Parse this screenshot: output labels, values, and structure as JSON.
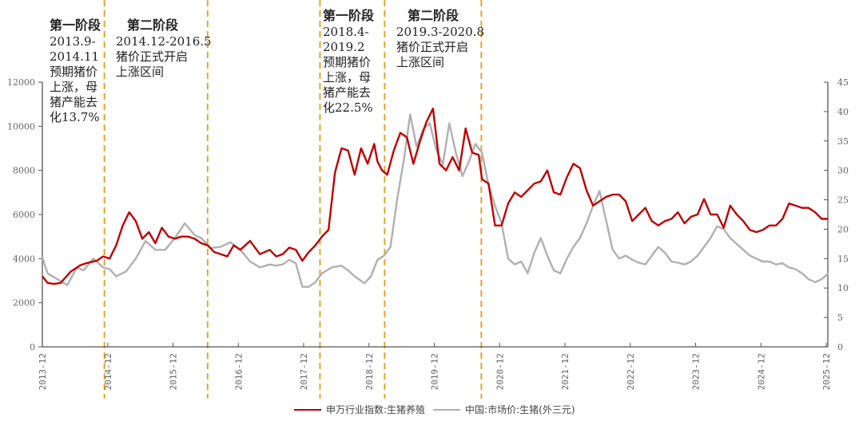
{
  "chart_data": {
    "type": "line",
    "title": "",
    "x_ticks": [
      "2013-12",
      "2014-12",
      "2015-12",
      "2016-12",
      "2017-12",
      "2018-12",
      "2019-12",
      "2020-12",
      "2021-12",
      "2022-12",
      "2023-12",
      "2024-12",
      "2025-12"
    ],
    "y_left": {
      "label": "",
      "ylim": [
        0,
        12000
      ],
      "ticks": [
        0,
        2000,
        4000,
        6000,
        8000,
        10000,
        12000
      ]
    },
    "y_right": {
      "label": "",
      "ylim": [
        0,
        45
      ],
      "ticks": [
        0,
        5,
        10,
        15,
        20,
        25,
        30,
        35,
        40,
        45
      ]
    },
    "grid": false,
    "legend_position": "bottom",
    "series": [
      {
        "name": "申万行业指数:生猪养殖",
        "axis": "left",
        "color": "#c00000",
        "x": [
          2013.92,
          2014.0,
          2014.1,
          2014.2,
          2014.35,
          2014.5,
          2014.6,
          2014.75,
          2014.85,
          2014.95,
          2015.05,
          2015.15,
          2015.25,
          2015.35,
          2015.45,
          2015.55,
          2015.65,
          2015.75,
          2015.85,
          2015.95,
          2016.05,
          2016.15,
          2016.25,
          2016.35,
          2016.45,
          2016.55,
          2016.65,
          2016.75,
          2016.85,
          2016.95,
          2017.1,
          2017.25,
          2017.4,
          2017.5,
          2017.6,
          2017.7,
          2017.8,
          2017.9,
          2018.0,
          2018.1,
          2018.2,
          2018.3,
          2018.4,
          2018.5,
          2018.6,
          2018.7,
          2018.8,
          2018.9,
          2019.0,
          2019.05,
          2019.12,
          2019.2,
          2019.3,
          2019.4,
          2019.5,
          2019.6,
          2019.7,
          2019.8,
          2019.9,
          2020.0,
          2020.1,
          2020.2,
          2020.3,
          2020.4,
          2020.5,
          2020.6,
          2020.65,
          2020.75,
          2020.85,
          2020.95,
          2021.05,
          2021.15,
          2021.25,
          2021.35,
          2021.45,
          2021.55,
          2021.65,
          2021.75,
          2021.85,
          2021.95,
          2022.05,
          2022.15,
          2022.25,
          2022.35,
          2022.45,
          2022.55,
          2022.65,
          2022.75,
          2022.85,
          2022.95,
          2023.05,
          2023.15,
          2023.25,
          2023.35,
          2023.45,
          2023.55,
          2023.65,
          2023.75,
          2023.85,
          2023.95,
          2024.05,
          2024.15,
          2024.25,
          2024.35,
          2024.45,
          2024.55,
          2024.65,
          2024.75,
          2024.85,
          2024.95,
          2025.05,
          2025.15,
          2025.25,
          2025.35,
          2025.45,
          2025.55,
          2025.65,
          2025.75,
          2025.85,
          2025.95
        ],
        "values": [
          3200,
          2900,
          2850,
          2900,
          3400,
          3700,
          3800,
          3900,
          4100,
          4000,
          4600,
          5500,
          6100,
          5700,
          4900,
          5200,
          4700,
          5400,
          5000,
          4900,
          5000,
          5000,
          4900,
          4700,
          4600,
          4300,
          4200,
          4100,
          4600,
          4400,
          4800,
          4200,
          4400,
          4100,
          4200,
          4500,
          4400,
          3900,
          4300,
          4600,
          5000,
          5300,
          7900,
          9000,
          8900,
          7800,
          9000,
          8300,
          9200,
          8400,
          8000,
          7800,
          8900,
          9700,
          9500,
          8300,
          9300,
          10200,
          10800,
          8300,
          8000,
          8600,
          8000,
          9900,
          8800,
          8700,
          7600,
          7400,
          5500,
          5500,
          6500,
          7000,
          6800,
          7100,
          7400,
          7500,
          8000,
          7000,
          6900,
          7700,
          8300,
          8100,
          7100,
          6400,
          6600,
          6800,
          6900,
          6900,
          6600,
          5700,
          6000,
          6300,
          5700,
          5500,
          5700,
          5800,
          6100,
          5600,
          5900,
          6000,
          6700,
          6000,
          6000,
          5400,
          6400,
          6000,
          5700,
          5300,
          5200,
          5300,
          5500,
          5500,
          5800,
          6500,
          6400,
          6300,
          6300,
          6100,
          5800,
          5800
        ],
        "note": "approximate trace"
      },
      {
        "name": "中国:市场价:生猪(外三元)",
        "axis": "right",
        "color": "#b0b0b0",
        "x": [
          2013.92,
          2014.0,
          2014.15,
          2014.3,
          2014.45,
          2014.55,
          2014.7,
          2014.85,
          2014.95,
          2015.05,
          2015.2,
          2015.35,
          2015.5,
          2015.65,
          2015.8,
          2015.95,
          2016.1,
          2016.25,
          2016.35,
          2016.5,
          2016.65,
          2016.8,
          2016.95,
          2017.1,
          2017.25,
          2017.4,
          2017.5,
          2017.6,
          2017.7,
          2017.8,
          2017.9,
          2018.0,
          2018.1,
          2018.2,
          2018.35,
          2018.5,
          2018.6,
          2018.7,
          2018.85,
          2018.95,
          2019.05,
          2019.15,
          2019.25,
          2019.35,
          2019.45,
          2019.55,
          2019.65,
          2019.75,
          2019.85,
          2019.95,
          2020.05,
          2020.15,
          2020.25,
          2020.35,
          2020.45,
          2020.55,
          2020.65,
          2020.75,
          2020.85,
          2020.95,
          2021.05,
          2021.15,
          2021.25,
          2021.35,
          2021.45,
          2021.55,
          2021.65,
          2021.75,
          2021.85,
          2021.95,
          2022.05,
          2022.15,
          2022.25,
          2022.35,
          2022.45,
          2022.55,
          2022.65,
          2022.75,
          2022.85,
          2022.95,
          2023.05,
          2023.15,
          2023.25,
          2023.35,
          2023.45,
          2023.55,
          2023.65,
          2023.75,
          2023.85,
          2023.95,
          2024.05,
          2024.15,
          2024.25,
          2024.35,
          2024.45,
          2024.55,
          2024.65,
          2024.75,
          2024.85,
          2024.95,
          2025.05,
          2025.15,
          2025.25,
          2025.35,
          2025.45,
          2025.55,
          2025.65,
          2025.75,
          2025.85,
          2025.95
        ],
        "values": [
          15.2,
          12.5,
          11.5,
          10.5,
          13.5,
          13.0,
          15.0,
          13.5,
          13.2,
          12.0,
          12.8,
          15.0,
          18.0,
          16.5,
          16.5,
          18.5,
          21.0,
          19.0,
          18.5,
          16.8,
          17.0,
          17.8,
          16.5,
          14.5,
          13.5,
          14.0,
          13.8,
          14.0,
          14.8,
          14.2,
          10.2,
          10.2,
          11.0,
          12.5,
          13.5,
          13.8,
          13.0,
          12.0,
          10.8,
          12.0,
          14.8,
          15.5,
          17.0,
          25.0,
          31.5,
          39.5,
          34.0,
          37.0,
          38.0,
          33.5,
          31.0,
          38.0,
          33.0,
          29.0,
          31.5,
          34.5,
          33.0,
          27.5,
          24.0,
          21.0,
          15.0,
          14.0,
          14.5,
          12.5,
          16.0,
          18.5,
          15.5,
          13.0,
          12.5,
          15.0,
          17.0,
          18.5,
          21.0,
          24.0,
          26.5,
          21.5,
          16.5,
          15.0,
          15.5,
          14.8,
          14.3,
          14.0,
          15.5,
          17.0,
          16.0,
          14.5,
          14.3,
          14.0,
          14.5,
          15.5,
          17.0,
          18.5,
          20.5,
          20.0,
          18.5,
          17.5,
          16.5,
          15.5,
          15.0,
          14.5,
          14.5,
          14.0,
          14.2,
          13.5,
          13.2,
          12.5,
          11.5,
          11.0,
          11.5,
          12.5
        ],
        "note": "approximate trace"
      }
    ],
    "annotations": [
      {
        "id": "phase1a",
        "x_line": 2014.87,
        "heading": "第一阶段",
        "lines": [
          "2013.9-",
          "2014.11",
          "预期猪价",
          "上涨，母",
          "猪产能去",
          "化13.7%"
        ]
      },
      {
        "id": "phase2a",
        "x_line": 2016.45,
        "heading": "第二阶段",
        "lines": [
          "2014.12-2016.5",
          "猪价正式开启",
          "上涨区间"
        ]
      },
      {
        "id": "phase1b",
        "x_line": 2018.17,
        "heading": "第一阶段",
        "lines": [
          "2018.4-",
          "2019.2",
          "预期猪价",
          "上涨，母",
          "猪产能去",
          "化22.5%"
        ]
      },
      {
        "id": "phase2b",
        "x_line": 2020.64,
        "heading": "第二阶段",
        "lines": [
          "2019.3-2020.8",
          "猪价正式开启",
          "上涨区间"
        ]
      }
    ],
    "dashed_lines_x": [
      2014.87,
      2016.45,
      2018.17,
      2019.16,
      2020.64
    ],
    "dashed_line_color": "#e0a43a"
  },
  "legend": {
    "items": [
      {
        "label": "申万行业指数:生猪养殖",
        "color": "#c00000"
      },
      {
        "label": "中国:市场价:生猪(外三元)",
        "color": "#b0b0b0"
      }
    ]
  }
}
